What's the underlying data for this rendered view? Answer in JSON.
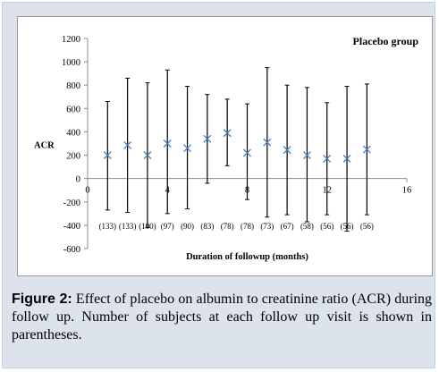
{
  "chart_data": {
    "type": "scatter",
    "legend_title": "Placebo group",
    "ylabel": "ACR",
    "xlabel": "Duration of followup (months)",
    "xlim": [
      0,
      16
    ],
    "ylim": [
      -600,
      1200
    ],
    "x_ticks": [
      0,
      4,
      8,
      12,
      16
    ],
    "y_ticks": [
      -600,
      -400,
      -200,
      0,
      200,
      400,
      600,
      800,
      1000,
      1200
    ],
    "x_tick_labels": [
      "0",
      "4",
      "8",
      "12",
      "16"
    ],
    "y_tick_labels": [
      "-600",
      "-400",
      "-200",
      "0",
      "200",
      "400",
      "600",
      "800",
      "1000",
      "1200"
    ],
    "marker": "x",
    "marker_color": "#4a7fbf",
    "errorbar_color": "#000000",
    "points": [
      {
        "x": 1,
        "y": 200,
        "low": -270,
        "high": 660,
        "n": "(133)"
      },
      {
        "x": 2,
        "y": 285,
        "low": -290,
        "high": 860,
        "n": "(133)"
      },
      {
        "x": 3,
        "y": 200,
        "low": -420,
        "high": 820,
        "n": "(100)"
      },
      {
        "x": 4,
        "y": 300,
        "low": -300,
        "high": 930,
        "n": "(97)"
      },
      {
        "x": 5,
        "y": 260,
        "low": -260,
        "high": 790,
        "n": "(90)"
      },
      {
        "x": 6,
        "y": 340,
        "low": -40,
        "high": 720,
        "n": "(83)"
      },
      {
        "x": 7,
        "y": 390,
        "low": 110,
        "high": 680,
        "n": "(78)"
      },
      {
        "x": 8,
        "y": 220,
        "low": -180,
        "high": 640,
        "n": "(78)"
      },
      {
        "x": 9,
        "y": 310,
        "low": -330,
        "high": 950,
        "n": "(73)"
      },
      {
        "x": 10,
        "y": 245,
        "low": -310,
        "high": 800,
        "n": "(67)"
      },
      {
        "x": 11,
        "y": 200,
        "low": -370,
        "high": 780,
        "n": "(58)"
      },
      {
        "x": 12,
        "y": 170,
        "low": -310,
        "high": 650,
        "n": "(56)"
      },
      {
        "x": 13,
        "y": 170,
        "low": -450,
        "high": 790,
        "n": "(56)"
      },
      {
        "x": 14,
        "y": 250,
        "low": -310,
        "high": 810,
        "n": "(56)"
      }
    ]
  },
  "caption": {
    "label": "Figure 2:",
    "text": " Effect of placebo on albumin to creatinine ratio (ACR) during follow up. Number of subjects at each follow up visit is shown in parentheses."
  }
}
